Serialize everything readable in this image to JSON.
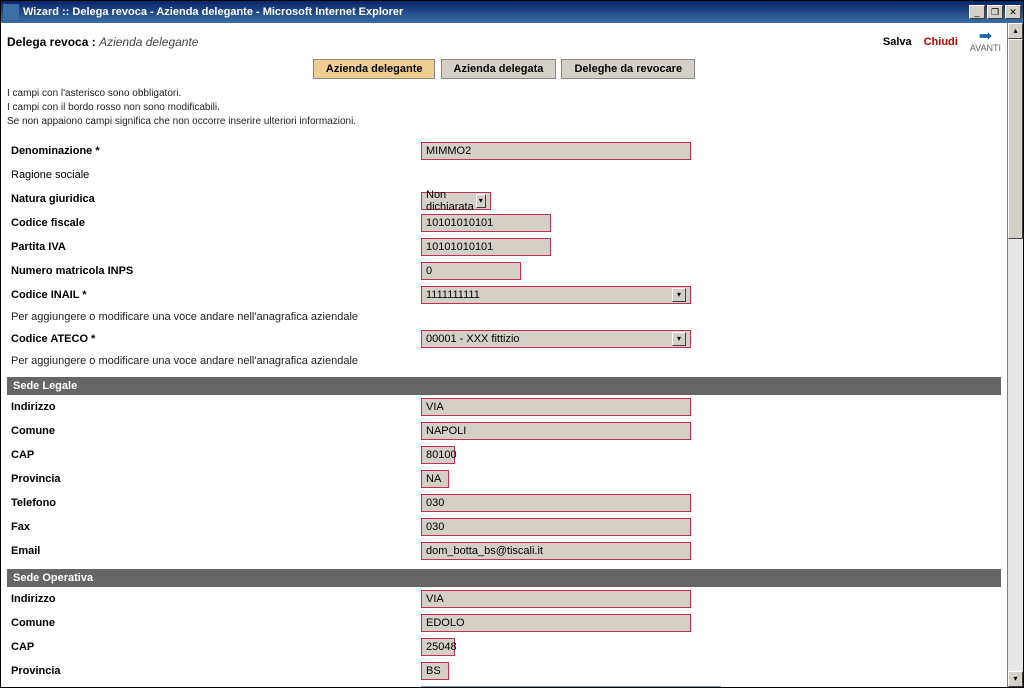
{
  "window": {
    "title": "Wizard :: Delega revoca - Azienda delegante - Microsoft Internet Explorer"
  },
  "header": {
    "title_prefix": "Delega revoca :",
    "title_suffix": "Azienda delegante",
    "salva": "Salva",
    "chiudi": "Chiudi",
    "avanti": "AVANTI"
  },
  "tabs": {
    "t1": "Azienda delegante",
    "t2": "Azienda delegata",
    "t3": "Deleghe da revocare"
  },
  "help": {
    "l1": "I campi con l'asterisco sono obbligatori.",
    "l2": "I campi con il bordo rosso non sono modificabili.",
    "l3": "Se non appaiono campi significa che non occorre inserire ulteriori informazioni."
  },
  "labels": {
    "denominazione": "Denominazione *",
    "ragione": "Ragione sociale",
    "natura": "Natura giuridica",
    "codfisc": "Codice fiscale",
    "piva": "Partita IVA",
    "matricola": "Numero matricola INPS",
    "inail": "Codice INAIL *",
    "info": "Per aggiungere o modificare una voce andare nell'anagrafica aziendale",
    "ateco": "Codice ATECO *",
    "sede_legale": "Sede Legale",
    "indirizzo": "Indirizzo",
    "comune": "Comune",
    "cap": "CAP",
    "provincia": "Provincia",
    "telefono": "Telefono",
    "fax": "Fax",
    "email": "Email",
    "sede_op": "Sede Operativa"
  },
  "values": {
    "denominazione": "MIMMO2",
    "natura": "Non dichiarata",
    "codfisc": "10101010101",
    "piva": "10101010101",
    "matricola": "0",
    "inail": "1111111111",
    "ateco": "00001 - XXX fittizio",
    "sl_indirizzo": "VIA",
    "sl_comune": "NAPOLI",
    "sl_cap": "80100",
    "sl_provincia": "NA",
    "sl_telefono": "030",
    "sl_fax": "030",
    "sl_email": "dom_botta_bs@tiscali.it",
    "so_indirizzo": "VIA",
    "so_comune": "EDOLO",
    "so_cap": "25048",
    "so_provincia": "BS",
    "so_telefono": ""
  }
}
